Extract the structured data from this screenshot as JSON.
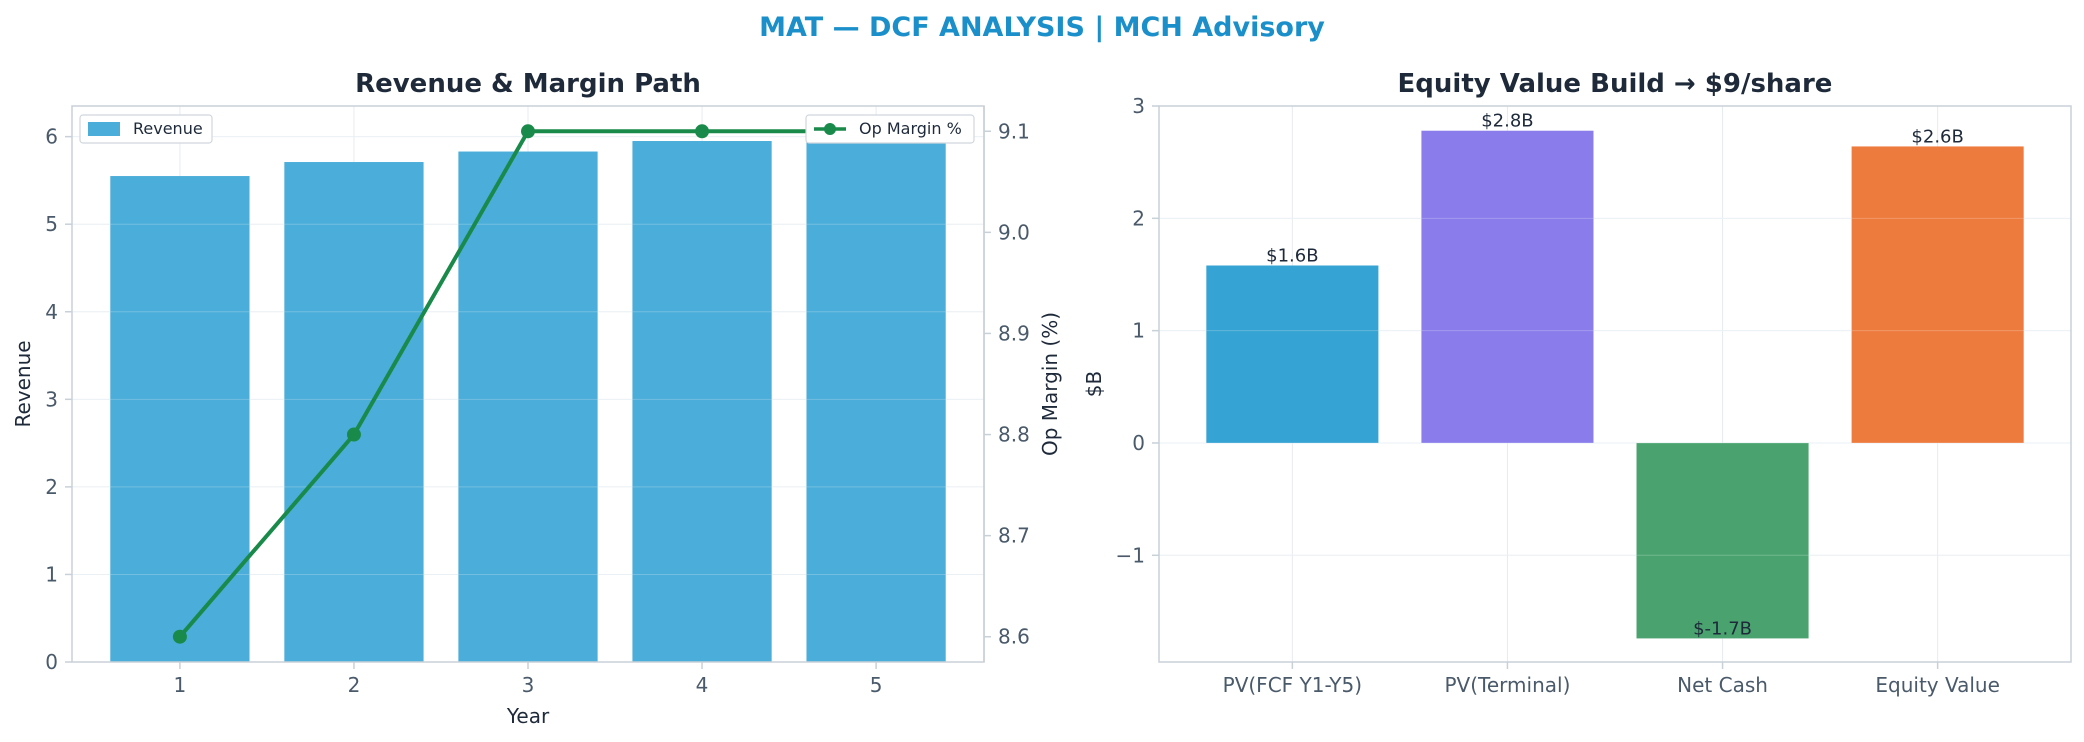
{
  "suptitle": "MAT — DCF ANALYSIS | MCH Advisory",
  "chart_data": [
    {
      "type": "bar",
      "title": "Revenue & Margin Path",
      "xlabel": "Year",
      "ylabel": "Revenue",
      "y2label": "Op Margin (%)",
      "categories": [
        "1",
        "2",
        "3",
        "4",
        "5"
      ],
      "ylim": [
        0,
        6.35
      ],
      "yticks": [
        "0",
        "1",
        "2",
        "3",
        "4",
        "5",
        "6"
      ],
      "y2lim": [
        8.575,
        9.125
      ],
      "y2ticks": [
        "8.6",
        "8.7",
        "8.8",
        "8.9",
        "9.0",
        "9.1"
      ],
      "grid": true,
      "series": [
        {
          "name": "Revenue",
          "kind": "bar",
          "axis": "left",
          "color": "#4badd9",
          "values": [
            5.55,
            5.71,
            5.83,
            5.95,
            6.07
          ]
        },
        {
          "name": "Op Margin %",
          "kind": "line",
          "axis": "right",
          "color": "#1a8a4a",
          "values": [
            8.6,
            8.8,
            9.1,
            9.1,
            9.1
          ]
        }
      ],
      "legend": [
        {
          "label": "Revenue",
          "placement": "top-left"
        },
        {
          "label": "Op Margin %",
          "placement": "top-right"
        }
      ]
    },
    {
      "type": "bar",
      "title": "Equity Value Build → $9/share",
      "xlabel": "",
      "ylabel": "$B",
      "categories": [
        "PV(FCF Y1-Y5)",
        "PV(Terminal)",
        "Net Cash",
        "Equity Value"
      ],
      "values": [
        1.58,
        2.78,
        -1.74,
        2.64
      ],
      "data_labels": [
        "$1.6B",
        "$2.8B",
        "$-1.7B",
        "$2.6B"
      ],
      "colors": [
        "#35a3d3",
        "#8a7deb",
        "#4aa36f",
        "#ee7b3e"
      ],
      "ylim": [
        -1.95,
        3.0
      ],
      "yticks": [
        "−1",
        "0",
        "1",
        "2",
        "3"
      ],
      "grid": true
    }
  ]
}
